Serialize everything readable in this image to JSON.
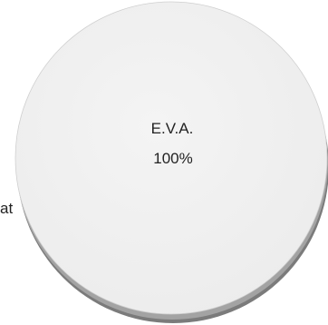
{
  "chart_data": {
    "type": "pie",
    "slices": [
      {
        "label": "E.V.A.",
        "value_label": "100%",
        "value": 100,
        "color": "#f1f1f1"
      }
    ],
    "side_fragment": "at",
    "colors": {
      "depth": "#7b7b7b",
      "depth_light": "#a3a3a3",
      "edge": "#cfcfcf"
    }
  }
}
